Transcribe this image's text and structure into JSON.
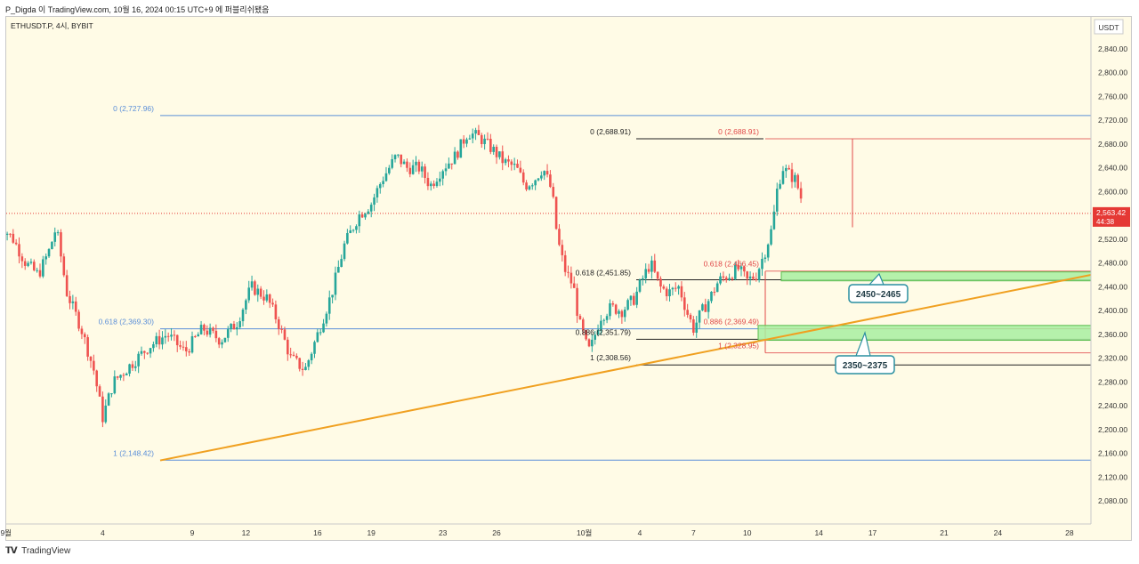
{
  "header": {
    "author_line": "P_Digda 이 TradingView.com,  10월 16, 2024 00:15 UTC+9 에 퍼블리쉬됐음"
  },
  "footer": {
    "logo_text": "TradingView",
    "logo_icon": "tradingview-logo-icon"
  },
  "chart_data": {
    "type": "candlestick",
    "symbol_label": "ETHUSDT.P, 4시, BYBIT",
    "currency_label": "USDT",
    "ylim": [
      2050,
      2880
    ],
    "x_range_days": [
      -3,
      29.3
    ],
    "y_ticks": [
      "2,840.00",
      "2,800.00",
      "2,760.00",
      "2,720.00",
      "2,680.00",
      "2,640.00",
      "2,600.00",
      "2,560.00",
      "2,520.00",
      "2,480.00",
      "2,440.00",
      "2,400.00",
      "2,360.00",
      "2,320.00",
      "2,280.00",
      "2,240.00",
      "2,200.00",
      "2,160.00",
      "2,120.00",
      "2,080.00"
    ],
    "y_tick_values": [
      2840,
      2800,
      2760,
      2720,
      2680,
      2640,
      2600,
      2560,
      2520,
      2480,
      2440,
      2400,
      2360,
      2320,
      2280,
      2240,
      2200,
      2160,
      2120,
      2080
    ],
    "x_ticks": [
      {
        "label": "9월",
        "day": -2
      },
      {
        "label": "4",
        "day": -1
      },
      {
        "label": "9",
        "day": 4
      },
      {
        "label": "12",
        "day": 7
      },
      {
        "label": "16",
        "day": 11
      },
      {
        "label": "19",
        "day": 14
      },
      {
        "label": "23",
        "day": 18
      },
      {
        "label": "26",
        "day": 21
      },
      {
        "label": "10월",
        "day": 26.9
      },
      {
        "label": "4",
        "day": 3.1
      },
      {
        "label": "7",
        "day": 6.1
      },
      {
        "label": "10",
        "day": 9.1
      },
      {
        "label": "14",
        "day": 13.1
      },
      {
        "label": "17",
        "day": 16.1
      },
      {
        "label": "21",
        "day": 20.1
      },
      {
        "label": "24",
        "day": 23.1
      },
      {
        "label": "28",
        "day": 27.1
      }
    ],
    "current_price": {
      "value": 2563.42,
      "label": "2,563.42",
      "countdown": "44:38"
    },
    "price_path": [
      [
        -3,
        2590
      ],
      [
        -2.6,
        2540
      ],
      [
        -2,
        2520
      ],
      [
        -1.3,
        2480
      ],
      [
        -0.6,
        2460
      ],
      [
        0,
        2500
      ],
      [
        0.4,
        2540
      ],
      [
        1,
        2430
      ],
      [
        1.8,
        2370
      ],
      [
        2.5,
        2300
      ],
      [
        3,
        2220
      ],
      [
        3.6,
        2280
      ],
      [
        4.6,
        2310
      ],
      [
        5.6,
        2340
      ],
      [
        6.6,
        2360
      ],
      [
        7.6,
        2330
      ],
      [
        8.6,
        2370
      ],
      [
        9.6,
        2350
      ],
      [
        10.5,
        2380
      ],
      [
        11.3,
        2440
      ],
      [
        12.2,
        2420
      ],
      [
        12.8,
        2380
      ],
      [
        13.5,
        2320
      ],
      [
        14.3,
        2300
      ],
      [
        15,
        2360
      ],
      [
        15.8,
        2430
      ],
      [
        16.5,
        2510
      ],
      [
        17.3,
        2560
      ],
      [
        18,
        2580
      ],
      [
        18.6,
        2620
      ],
      [
        19.4,
        2660
      ],
      [
        20,
        2640
      ],
      [
        20.7,
        2640
      ],
      [
        21.3,
        2610
      ],
      [
        22,
        2640
      ],
      [
        22.7,
        2660
      ],
      [
        23.4,
        2700
      ],
      [
        24.1,
        2690
      ],
      [
        24.8,
        2670
      ],
      [
        25.4,
        2650
      ],
      [
        26.1,
        2640
      ],
      [
        26.6,
        2610
      ],
      [
        27.1,
        2620
      ],
      [
        27.6,
        2640
      ],
      [
        28.1,
        2600
      ],
      [
        28.4,
        2520
      ],
      [
        28.8,
        2470
      ],
      [
        29.3,
        2440
      ],
      [
        29.6,
        2380
      ],
      [
        29.9,
        2355
      ],
      [
        30.1,
        2330
      ],
      [
        30.3,
        2340
      ],
      [
        30.8,
        2390
      ],
      [
        31.4,
        2405
      ],
      [
        32,
        2400
      ],
      [
        32.7,
        2420
      ],
      [
        33.1,
        2450
      ],
      [
        33.6,
        2480
      ],
      [
        34.1,
        2440
      ],
      [
        34.6,
        2430
      ],
      [
        35.2,
        2440
      ],
      [
        35.6,
        2400
      ],
      [
        36,
        2370
      ],
      [
        36.4,
        2395
      ],
      [
        36.9,
        2420
      ],
      [
        37.4,
        2450
      ],
      [
        38,
        2460
      ],
      [
        38.5,
        2470
      ],
      [
        39,
        2450
      ],
      [
        39.5,
        2460
      ],
      [
        40,
        2500
      ],
      [
        40.4,
        2540
      ],
      [
        40.7,
        2610
      ],
      [
        41,
        2640
      ],
      [
        41.3,
        2630
      ],
      [
        41.7,
        2620
      ],
      [
        42,
        2590
      ],
      [
        42.1,
        2563
      ]
    ],
    "price_path_axis": "x values in days counted from 9월 1 (day 30 = 10월 1)",
    "levels": [
      {
        "kind": "fib",
        "label": "0 (2,727.96)",
        "value": 2727.96
      },
      {
        "kind": "fib",
        "label": "0.618 (2,369.30)",
        "value": 2369.3
      },
      {
        "kind": "fib",
        "label": "1 (2,148.42)",
        "value": 2148.42
      },
      {
        "kind": "fib",
        "label": "0 (2,688.91)",
        "value": 2688.91
      },
      {
        "kind": "fib",
        "label": "0.618 (2,451.85)",
        "value": 2451.85
      },
      {
        "kind": "fib",
        "label": "0.886 (2,351.79)",
        "value": 2351.79
      },
      {
        "kind": "fib",
        "label": "1 (2,308.56)",
        "value": 2308.56
      },
      {
        "kind": "fib_red",
        "label": "0 (2,688.91)",
        "value": 2688.91
      },
      {
        "kind": "fib_red",
        "label": "0.618 (2,466.45)",
        "value": 2466.45
      },
      {
        "kind": "fib_red",
        "label": "0.886 (2,369.49)",
        "value": 2369.49
      },
      {
        "kind": "fib_red",
        "label": "1 (2,328.95)",
        "value": 2328.95
      }
    ],
    "zones": [
      {
        "label": "2450~2465",
        "low": 2450,
        "high": 2465
      },
      {
        "label": "2350~2375",
        "low": 2350,
        "high": 2375
      }
    ],
    "trendline": {
      "from": [
        5,
        2148
      ],
      "to": [
        58,
        2460
      ]
    },
    "colors": {
      "background": "#fffbe6",
      "bull": "#26a69a",
      "bear": "#ef5350",
      "fib_blue": "#5b8fd8",
      "fib_black": "#222222",
      "fib_red": "#e04848",
      "trendline": "#f0a020",
      "zone_fill": "#a8eea0",
      "zone_stroke": "#5bbd4f",
      "callout_stroke": "#2a8fa0",
      "price_tag": "#e53935"
    }
  }
}
